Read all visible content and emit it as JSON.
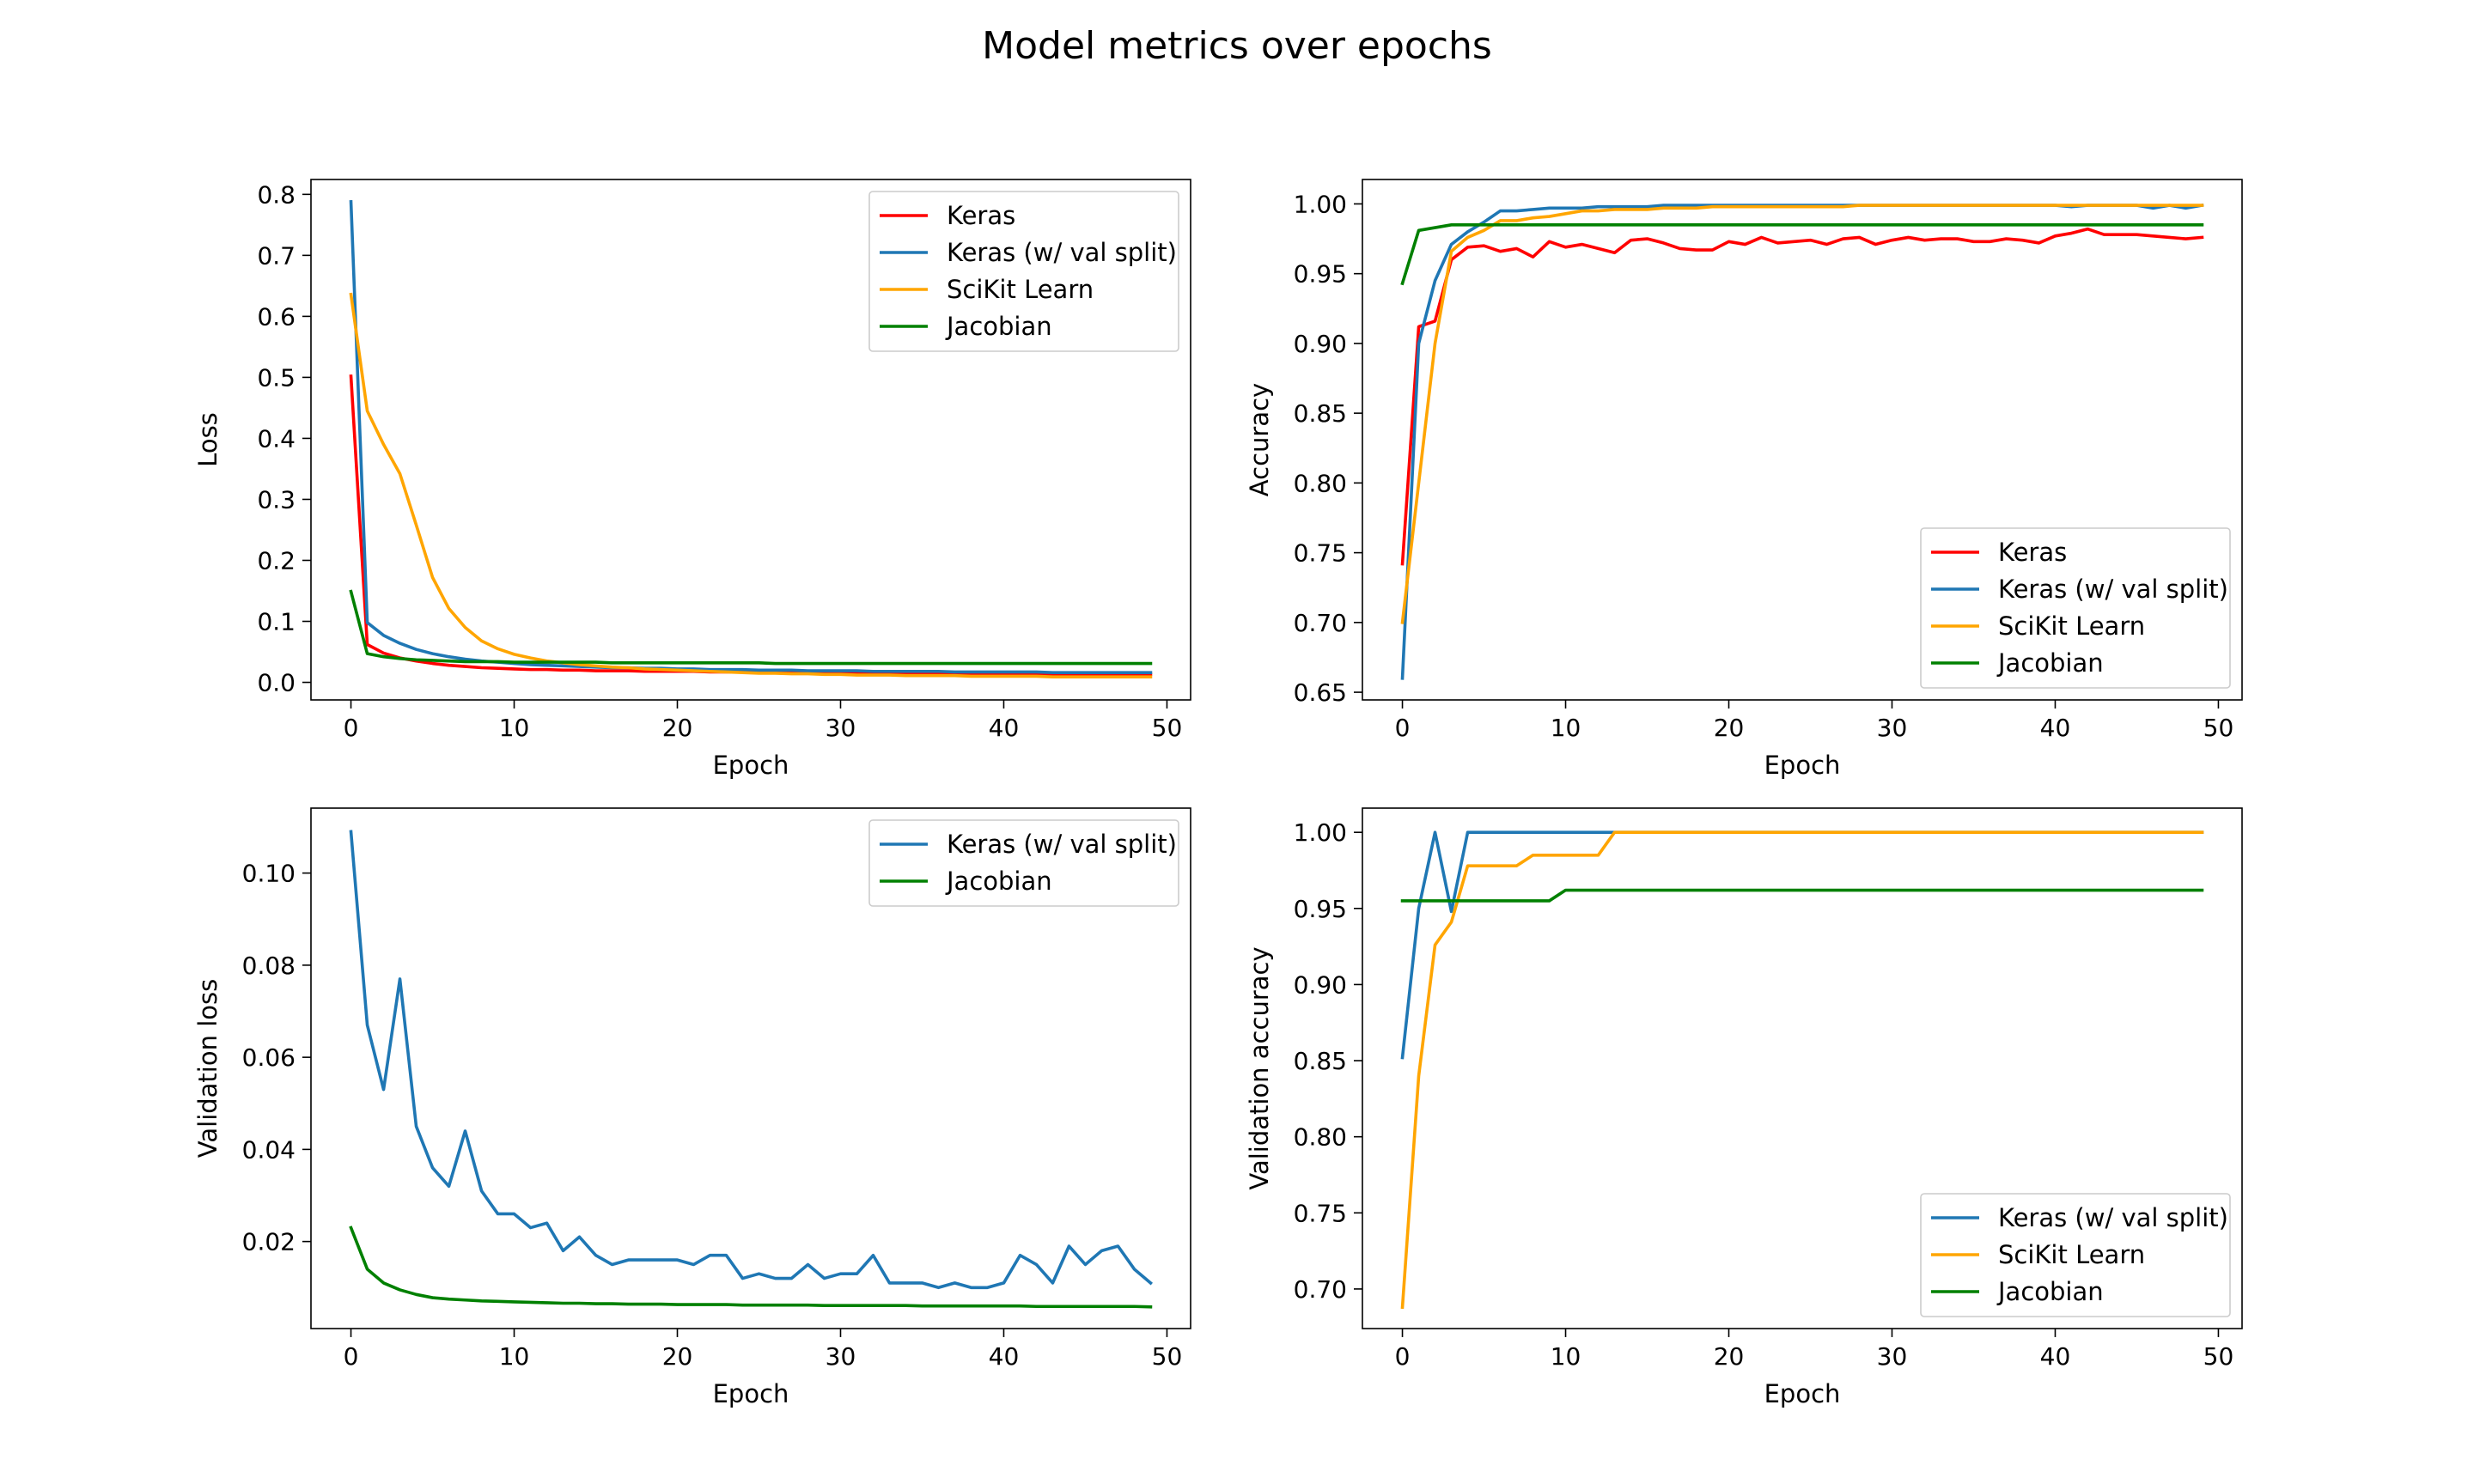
{
  "figure": {
    "title": "Model metrics over epochs"
  },
  "colors": {
    "Keras": "#ff0000",
    "Keras (w/ val split)": "#1f77b4",
    "SciKit Learn": "#ffa500",
    "Jacobian": "#008000"
  },
  "chart_data": [
    {
      "id": "loss",
      "type": "line",
      "title": "",
      "xlabel": "Epoch",
      "ylabel": "Loss",
      "xlim": [
        -2.45,
        51.45
      ],
      "ylim": [
        -0.0288,
        0.8244
      ],
      "xticks": [
        0,
        10,
        20,
        30,
        40,
        50
      ],
      "yticks": [
        0.0,
        0.1,
        0.2,
        0.3,
        0.4,
        0.5,
        0.6,
        0.7,
        0.8
      ],
      "yticklabels": [
        "0.0",
        "0.1",
        "0.2",
        "0.3",
        "0.4",
        "0.5",
        "0.6",
        "0.7",
        "0.8"
      ],
      "grid": false,
      "legend": "upper-right",
      "x": [
        0,
        1,
        2,
        3,
        4,
        5,
        6,
        7,
        8,
        9,
        10,
        11,
        12,
        13,
        14,
        15,
        16,
        17,
        18,
        19,
        20,
        21,
        22,
        23,
        24,
        25,
        26,
        27,
        28,
        29,
        30,
        31,
        32,
        33,
        34,
        35,
        36,
        37,
        38,
        39,
        40,
        41,
        42,
        43,
        44,
        45,
        46,
        47,
        48,
        49
      ],
      "series": [
        {
          "name": "Keras",
          "values": [
            0.502,
            0.062,
            0.048,
            0.04,
            0.035,
            0.031,
            0.028,
            0.026,
            0.024,
            0.023,
            0.022,
            0.021,
            0.021,
            0.02,
            0.02,
            0.019,
            0.019,
            0.019,
            0.018,
            0.018,
            0.018,
            0.018,
            0.017,
            0.017,
            0.017,
            0.017,
            0.016,
            0.016,
            0.016,
            0.016,
            0.016,
            0.015,
            0.015,
            0.015,
            0.015,
            0.015,
            0.015,
            0.014,
            0.014,
            0.014,
            0.014,
            0.014,
            0.014,
            0.013,
            0.013,
            0.013,
            0.013,
            0.013,
            0.013,
            0.013
          ]
        },
        {
          "name": "Keras (w/ val split)",
          "values": [
            0.788,
            0.098,
            0.077,
            0.064,
            0.054,
            0.047,
            0.042,
            0.038,
            0.035,
            0.033,
            0.031,
            0.029,
            0.028,
            0.027,
            0.026,
            0.025,
            0.024,
            0.024,
            0.023,
            0.023,
            0.022,
            0.022,
            0.021,
            0.021,
            0.021,
            0.02,
            0.02,
            0.02,
            0.019,
            0.019,
            0.019,
            0.019,
            0.018,
            0.018,
            0.018,
            0.018,
            0.018,
            0.017,
            0.017,
            0.017,
            0.017,
            0.017,
            0.017,
            0.016,
            0.016,
            0.016,
            0.016,
            0.016,
            0.016,
            0.016
          ]
        },
        {
          "name": "SciKit Learn",
          "values": [
            0.636,
            0.445,
            0.39,
            0.342,
            0.258,
            0.172,
            0.121,
            0.09,
            0.068,
            0.055,
            0.046,
            0.04,
            0.035,
            0.032,
            0.029,
            0.027,
            0.025,
            0.024,
            0.022,
            0.021,
            0.02,
            0.019,
            0.018,
            0.017,
            0.016,
            0.015,
            0.015,
            0.014,
            0.014,
            0.013,
            0.013,
            0.012,
            0.012,
            0.012,
            0.011,
            0.011,
            0.011,
            0.011,
            0.01,
            0.01,
            0.01,
            0.01,
            0.01,
            0.009,
            0.009,
            0.009,
            0.009,
            0.009,
            0.009,
            0.009
          ]
        },
        {
          "name": "Jacobian",
          "values": [
            0.149,
            0.047,
            0.042,
            0.039,
            0.037,
            0.036,
            0.035,
            0.034,
            0.034,
            0.034,
            0.033,
            0.033,
            0.033,
            0.033,
            0.033,
            0.033,
            0.032,
            0.032,
            0.032,
            0.032,
            0.032,
            0.032,
            0.032,
            0.032,
            0.032,
            0.032,
            0.031,
            0.031,
            0.031,
            0.031,
            0.031,
            0.031,
            0.031,
            0.031,
            0.031,
            0.031,
            0.031,
            0.031,
            0.031,
            0.031,
            0.031,
            0.031,
            0.031,
            0.031,
            0.031,
            0.031,
            0.031,
            0.031,
            0.031,
            0.031
          ]
        }
      ]
    },
    {
      "id": "accuracy",
      "type": "line",
      "title": "",
      "xlabel": "Epoch",
      "ylabel": "Accuracy",
      "xlim": [
        -2.45,
        51.45
      ],
      "ylim": [
        0.6445,
        1.0175
      ],
      "xticks": [
        0,
        10,
        20,
        30,
        40,
        50
      ],
      "yticks": [
        0.65,
        0.7,
        0.75,
        0.8,
        0.85,
        0.9,
        0.95,
        1.0
      ],
      "yticklabels": [
        "0.65",
        "0.70",
        "0.75",
        "0.80",
        "0.85",
        "0.90",
        "0.95",
        "1.00"
      ],
      "grid": false,
      "legend": "lower-right",
      "x": [
        0,
        1,
        2,
        3,
        4,
        5,
        6,
        7,
        8,
        9,
        10,
        11,
        12,
        13,
        14,
        15,
        16,
        17,
        18,
        19,
        20,
        21,
        22,
        23,
        24,
        25,
        26,
        27,
        28,
        29,
        30,
        31,
        32,
        33,
        34,
        35,
        36,
        37,
        38,
        39,
        40,
        41,
        42,
        43,
        44,
        45,
        46,
        47,
        48,
        49
      ],
      "series": [
        {
          "name": "Keras",
          "values": [
            0.742,
            0.912,
            0.916,
            0.96,
            0.969,
            0.97,
            0.966,
            0.968,
            0.962,
            0.973,
            0.969,
            0.971,
            0.968,
            0.965,
            0.974,
            0.975,
            0.972,
            0.968,
            0.967,
            0.967,
            0.973,
            0.971,
            0.976,
            0.972,
            0.973,
            0.974,
            0.971,
            0.975,
            0.976,
            0.971,
            0.974,
            0.976,
            0.974,
            0.975,
            0.975,
            0.973,
            0.973,
            0.975,
            0.974,
            0.972,
            0.977,
            0.979,
            0.982,
            0.978,
            0.978,
            0.978,
            0.977,
            0.976,
            0.975,
            0.976
          ]
        },
        {
          "name": "Keras (w/ val split)",
          "values": [
            0.66,
            0.9,
            0.945,
            0.971,
            0.98,
            0.987,
            0.995,
            0.995,
            0.996,
            0.997,
            0.997,
            0.997,
            0.998,
            0.998,
            0.998,
            0.998,
            0.999,
            0.999,
            0.999,
            0.999,
            0.999,
            0.999,
            0.999,
            0.999,
            0.999,
            0.999,
            0.999,
            0.999,
            0.999,
            0.999,
            0.999,
            0.999,
            0.999,
            0.999,
            0.999,
            0.999,
            0.999,
            0.999,
            0.999,
            0.999,
            0.999,
            0.998,
            0.999,
            0.999,
            0.999,
            0.999,
            0.997,
            0.999,
            0.997,
            0.999
          ]
        },
        {
          "name": "SciKit Learn",
          "values": [
            0.7,
            0.8,
            0.9,
            0.966,
            0.976,
            0.981,
            0.988,
            0.988,
            0.99,
            0.991,
            0.993,
            0.995,
            0.995,
            0.996,
            0.996,
            0.996,
            0.997,
            0.997,
            0.997,
            0.998,
            0.998,
            0.998,
            0.998,
            0.998,
            0.998,
            0.998,
            0.998,
            0.998,
            0.999,
            0.999,
            0.999,
            0.999,
            0.999,
            0.999,
            0.999,
            0.999,
            0.999,
            0.999,
            0.999,
            0.999,
            0.999,
            0.999,
            0.999,
            0.999,
            0.999,
            0.999,
            0.999,
            0.999,
            0.999,
            0.999
          ]
        },
        {
          "name": "Jacobian",
          "values": [
            0.943,
            0.981,
            0.983,
            0.985,
            0.985,
            0.985,
            0.985,
            0.985,
            0.985,
            0.985,
            0.985,
            0.985,
            0.985,
            0.985,
            0.985,
            0.985,
            0.985,
            0.985,
            0.985,
            0.985,
            0.985,
            0.985,
            0.985,
            0.985,
            0.985,
            0.985,
            0.985,
            0.985,
            0.985,
            0.985,
            0.985,
            0.985,
            0.985,
            0.985,
            0.985,
            0.985,
            0.985,
            0.985,
            0.985,
            0.985,
            0.985,
            0.985,
            0.985,
            0.985,
            0.985,
            0.985,
            0.985,
            0.985,
            0.985,
            0.985
          ]
        }
      ]
    },
    {
      "id": "val-loss",
      "type": "line",
      "title": "",
      "xlabel": "Epoch",
      "ylabel": "Validation loss",
      "xlim": [
        -2.45,
        51.45
      ],
      "ylim": [
        0.0011,
        0.1141
      ],
      "xticks": [
        0,
        10,
        20,
        30,
        40,
        50
      ],
      "yticks": [
        0.02,
        0.04,
        0.06,
        0.08,
        0.1
      ],
      "yticklabels": [
        "0.02",
        "0.04",
        "0.06",
        "0.08",
        "0.10"
      ],
      "grid": false,
      "legend": "upper-right",
      "x": [
        0,
        1,
        2,
        3,
        4,
        5,
        6,
        7,
        8,
        9,
        10,
        11,
        12,
        13,
        14,
        15,
        16,
        17,
        18,
        19,
        20,
        21,
        22,
        23,
        24,
        25,
        26,
        27,
        28,
        29,
        30,
        31,
        32,
        33,
        34,
        35,
        36,
        37,
        38,
        39,
        40,
        41,
        42,
        43,
        44,
        45,
        46,
        47,
        48,
        49
      ],
      "series": [
        {
          "name": "Keras (w/ val split)",
          "values": [
            0.109,
            0.067,
            0.053,
            0.077,
            0.045,
            0.036,
            0.032,
            0.044,
            0.031,
            0.026,
            0.026,
            0.023,
            0.024,
            0.018,
            0.021,
            0.017,
            0.015,
            0.016,
            0.016,
            0.016,
            0.016,
            0.015,
            0.017,
            0.017,
            0.012,
            0.013,
            0.012,
            0.012,
            0.015,
            0.012,
            0.013,
            0.013,
            0.017,
            0.011,
            0.011,
            0.011,
            0.01,
            0.011,
            0.01,
            0.01,
            0.011,
            0.017,
            0.015,
            0.011,
            0.019,
            0.015,
            0.018,
            0.019,
            0.014,
            0.011
          ]
        },
        {
          "name": "Jacobian",
          "values": [
            0.023,
            0.014,
            0.011,
            0.0095,
            0.0085,
            0.0078,
            0.0075,
            0.0073,
            0.0071,
            0.007,
            0.0069,
            0.0068,
            0.0067,
            0.0066,
            0.0066,
            0.0065,
            0.0065,
            0.0064,
            0.0064,
            0.0064,
            0.0063,
            0.0063,
            0.0063,
            0.0063,
            0.0062,
            0.0062,
            0.0062,
            0.0062,
            0.0062,
            0.0061,
            0.0061,
            0.0061,
            0.0061,
            0.0061,
            0.0061,
            0.006,
            0.006,
            0.006,
            0.006,
            0.006,
            0.006,
            0.006,
            0.0059,
            0.0059,
            0.0059,
            0.0059,
            0.0059,
            0.0059,
            0.0059,
            0.0058
          ]
        }
      ]
    },
    {
      "id": "val-accuracy",
      "type": "line",
      "title": "",
      "xlabel": "Epoch",
      "ylabel": "Validation accuracy",
      "xlim": [
        -2.45,
        51.45
      ],
      "ylim": [
        0.674,
        1.0159
      ],
      "xticks": [
        0,
        10,
        20,
        30,
        40,
        50
      ],
      "yticks": [
        0.7,
        0.75,
        0.8,
        0.85,
        0.9,
        0.95,
        1.0
      ],
      "yticklabels": [
        "0.70",
        "0.75",
        "0.80",
        "0.85",
        "0.90",
        "0.95",
        "1.00"
      ],
      "grid": false,
      "legend": "lower-right",
      "x": [
        0,
        1,
        2,
        3,
        4,
        5,
        6,
        7,
        8,
        9,
        10,
        11,
        12,
        13,
        14,
        15,
        16,
        17,
        18,
        19,
        20,
        21,
        22,
        23,
        24,
        25,
        26,
        27,
        28,
        29,
        30,
        31,
        32,
        33,
        34,
        35,
        36,
        37,
        38,
        39,
        40,
        41,
        42,
        43,
        44,
        45,
        46,
        47,
        48,
        49
      ],
      "series": [
        {
          "name": "Keras (w/ val split)",
          "values": [
            0.852,
            0.95,
            1.0,
            0.948,
            1.0,
            1.0,
            1.0,
            1.0,
            1.0,
            1.0,
            1.0,
            1.0,
            1.0,
            1.0,
            1.0,
            1.0,
            1.0,
            1.0,
            1.0,
            1.0,
            1.0,
            1.0,
            1.0,
            1.0,
            1.0,
            1.0,
            1.0,
            1.0,
            1.0,
            1.0,
            1.0,
            1.0,
            1.0,
            1.0,
            1.0,
            1.0,
            1.0,
            1.0,
            1.0,
            1.0,
            1.0,
            1.0,
            1.0,
            1.0,
            1.0,
            1.0,
            1.0,
            1.0,
            1.0,
            1.0
          ]
        },
        {
          "name": "SciKit Learn",
          "values": [
            0.688,
            0.84,
            0.926,
            0.941,
            0.978,
            0.978,
            0.978,
            0.978,
            0.985,
            0.985,
            0.985,
            0.985,
            0.985,
            1.0,
            1.0,
            1.0,
            1.0,
            1.0,
            1.0,
            1.0,
            1.0,
            1.0,
            1.0,
            1.0,
            1.0,
            1.0,
            1.0,
            1.0,
            1.0,
            1.0,
            1.0,
            1.0,
            1.0,
            1.0,
            1.0,
            1.0,
            1.0,
            1.0,
            1.0,
            1.0,
            1.0,
            1.0,
            1.0,
            1.0,
            1.0,
            1.0,
            1.0,
            1.0,
            1.0,
            1.0
          ]
        },
        {
          "name": "Jacobian",
          "values": [
            0.955,
            0.955,
            0.955,
            0.955,
            0.955,
            0.955,
            0.955,
            0.955,
            0.955,
            0.955,
            0.962,
            0.962,
            0.962,
            0.962,
            0.962,
            0.962,
            0.962,
            0.962,
            0.962,
            0.962,
            0.962,
            0.962,
            0.962,
            0.962,
            0.962,
            0.962,
            0.962,
            0.962,
            0.962,
            0.962,
            0.962,
            0.962,
            0.962,
            0.962,
            0.962,
            0.962,
            0.962,
            0.962,
            0.962,
            0.962,
            0.962,
            0.962,
            0.962,
            0.962,
            0.962,
            0.962,
            0.962,
            0.962,
            0.962,
            0.962
          ]
        }
      ]
    }
  ]
}
